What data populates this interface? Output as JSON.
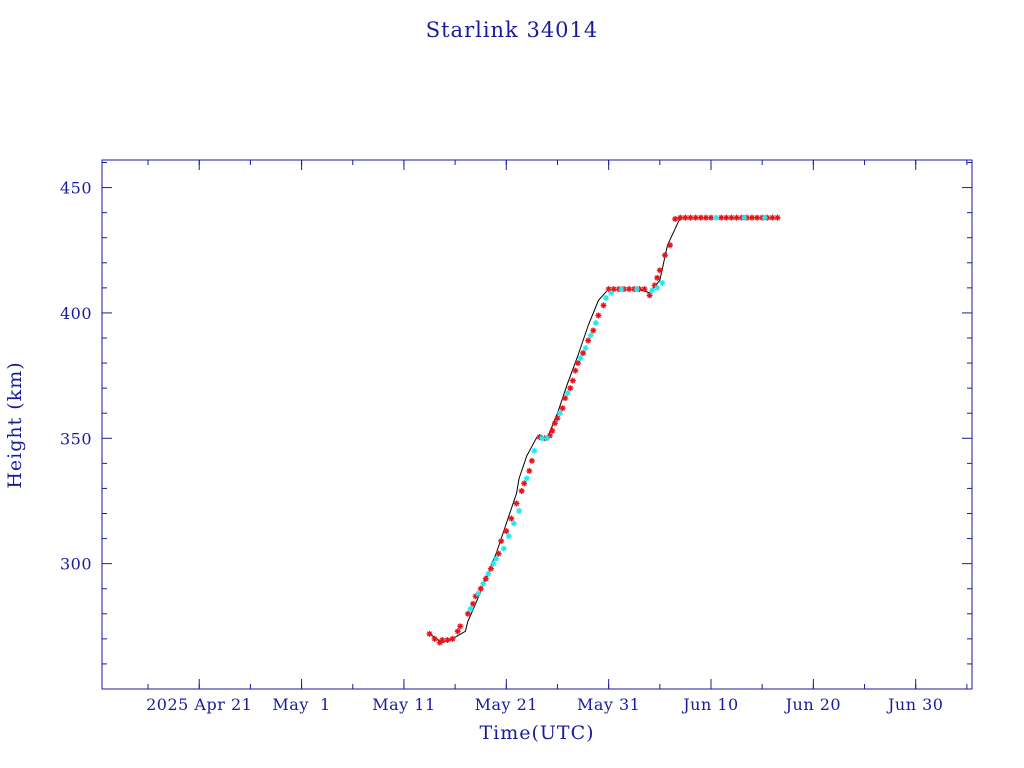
{
  "chart_data": {
    "type": "scatter",
    "title": "Starlink 34014",
    "xlabel": "Time(UTC)",
    "ylabel": "Height (km)",
    "x_unit": "date (UTC, 2025)",
    "xlim": [
      "2025-04-11T12:00",
      "2025-07-05T12:00"
    ],
    "ylim": [
      250,
      461
    ],
    "x_ticks": [
      {
        "value": "2025-04-21",
        "label": "2025 Apr 21"
      },
      {
        "value": "2025-05-01",
        "label": "May  1"
      },
      {
        "value": "2025-05-11",
        "label": "May 11"
      },
      {
        "value": "2025-05-21",
        "label": "May 21"
      },
      {
        "value": "2025-05-31",
        "label": "May 31"
      },
      {
        "value": "2025-06-10",
        "label": "Jun 10"
      },
      {
        "value": "2025-06-20",
        "label": "Jun 20"
      },
      {
        "value": "2025-06-30",
        "label": "Jun 30"
      }
    ],
    "y_ticks": [
      300,
      350,
      400,
      450
    ],
    "colors": {
      "axes": "#1a1a9c",
      "line": "#000000",
      "red_markers": "#e8141c",
      "cyan_markers": "#22e8f0"
    },
    "series": [
      {
        "color_key": "line",
        "style": "line",
        "x": [
          "2025-05-13T12:00",
          "2025-05-14T18:00",
          "2025-05-15T12:00",
          "2025-05-17T00:00",
          "2025-05-17T06:00",
          "2025-05-18T00:00",
          "2025-05-19T00:00",
          "2025-05-20T00:00",
          "2025-05-21T00:00",
          "2025-05-22T00:00",
          "2025-05-22T06:00",
          "2025-05-23T00:00",
          "2025-05-24T00:00",
          "2025-05-25T00:00",
          "2025-05-26T00:00",
          "2025-05-27T00:00",
          "2025-05-28T00:00",
          "2025-05-29T00:00",
          "2025-05-30T00:00",
          "2025-05-31T00:00",
          "2025-06-01T00:00",
          "2025-06-02T00:00",
          "2025-06-03T00:00",
          "2025-06-04T00:00",
          "2025-06-05T00:00",
          "2025-06-05T18:00",
          "2025-06-07T00:00",
          "2025-06-10T00:00",
          "2025-06-15T00:00",
          "2025-06-16T12:00"
        ],
        "y": [
          272,
          268.5,
          269.5,
          273,
          277,
          284,
          294,
          304,
          316,
          328,
          334,
          343,
          350.5,
          350,
          360,
          372,
          383,
          395,
          405,
          409.5,
          409.5,
          409.5,
          409.5,
          408,
          413,
          427,
          438,
          438,
          438,
          438
        ]
      },
      {
        "color_key": "red_markers",
        "style": "marker",
        "x": [
          "2025-05-13T12:00",
          "2025-05-14T00:00",
          "2025-05-14T12:00",
          "2025-05-14T18:00",
          "2025-05-15T06:00",
          "2025-05-15T18:00",
          "2025-05-16T06:00",
          "2025-05-16T12:00",
          "2025-05-17T06:00",
          "2025-05-17T18:00",
          "2025-05-18T00:00",
          "2025-05-18T12:00",
          "2025-05-19T00:00",
          "2025-05-19T12:00",
          "2025-05-20T06:00",
          "2025-05-20T12:00",
          "2025-05-21T00:00",
          "2025-05-21T12:00",
          "2025-05-22T00:00",
          "2025-05-22T12:00",
          "2025-05-22T18:00",
          "2025-05-23T06:00",
          "2025-05-23T12:00",
          "2025-05-24T06:00",
          "2025-05-24T18:00",
          "2025-05-25T06:00",
          "2025-05-25T12:00",
          "2025-05-25T18:00",
          "2025-05-26T00:00",
          "2025-05-26T12:00",
          "2025-05-26T18:00",
          "2025-05-27T06:00",
          "2025-05-27T12:00",
          "2025-05-27T18:00",
          "2025-05-28T00:00",
          "2025-05-28T12:00",
          "2025-05-29T00:00",
          "2025-05-29T12:00",
          "2025-05-30T00:00",
          "2025-05-30T12:00",
          "2025-05-31T00:00",
          "2025-05-31T12:00",
          "2025-06-01T00:00",
          "2025-06-01T12:00",
          "2025-06-02T00:00",
          "2025-06-02T12:00",
          "2025-06-03T00:00",
          "2025-06-03T12:00",
          "2025-06-04T00:00",
          "2025-06-04T12:00",
          "2025-06-04T18:00",
          "2025-06-05T00:00",
          "2025-06-05T12:00",
          "2025-06-06T00:00",
          "2025-06-06T12:00",
          "2025-06-07T00:00",
          "2025-06-07T12:00",
          "2025-06-08T00:00",
          "2025-06-08T12:00",
          "2025-06-09T00:00",
          "2025-06-09T12:00",
          "2025-06-10T00:00",
          "2025-06-11T00:00",
          "2025-06-11T12:00",
          "2025-06-12T00:00",
          "2025-06-12T12:00",
          "2025-06-13T00:00",
          "2025-06-13T12:00",
          "2025-06-14T00:00",
          "2025-06-14T12:00",
          "2025-06-15T00:00",
          "2025-06-15T12:00",
          "2025-06-16T00:00",
          "2025-06-16T12:00"
        ],
        "y": [
          272,
          270,
          268.5,
          269.5,
          269.5,
          270,
          273,
          275,
          280,
          284,
          287,
          290,
          294,
          298,
          304,
          309,
          313,
          318,
          324,
          329,
          332,
          337,
          341,
          350.5,
          350,
          351,
          353,
          356,
          358,
          362,
          366,
          370,
          373,
          377,
          380,
          384,
          389,
          393,
          399,
          403,
          409.5,
          409.5,
          409.5,
          409.5,
          409.5,
          409.5,
          409.5,
          409.5,
          407,
          411,
          414,
          417,
          423,
          427,
          437.5,
          438,
          438,
          438,
          438,
          438,
          438,
          438,
          438,
          438,
          438,
          438,
          438,
          438,
          438,
          438,
          438,
          438,
          438,
          438
        ]
      },
      {
        "color_key": "cyan_markers",
        "style": "marker",
        "x": [
          "2025-05-17T12:00",
          "2025-05-18T06:00",
          "2025-05-18T18:00",
          "2025-05-19T06:00",
          "2025-05-19T18:00",
          "2025-05-20T00:00",
          "2025-05-20T18:00",
          "2025-05-21T06:00",
          "2025-05-21T18:00",
          "2025-05-22T06:00",
          "2025-05-23T00:00",
          "2025-05-23T18:00",
          "2025-05-24T12:00",
          "2025-05-25T00:00",
          "2025-05-26T06:00",
          "2025-05-27T00:00",
          "2025-05-28T06:00",
          "2025-05-28T18:00",
          "2025-05-29T06:00",
          "2025-05-29T18:00",
          "2025-05-30T18:00",
          "2025-05-31T06:00",
          "2025-06-01T06:00",
          "2025-06-02T18:00",
          "2025-06-04T06:00",
          "2025-06-04T18:00",
          "2025-06-05T06:00",
          "2025-06-10T12:00",
          "2025-06-13T06:00",
          "2025-06-15T06:00"
        ],
        "y": [
          282,
          288,
          292,
          296,
          300,
          302,
          306,
          311,
          316,
          321,
          334,
          345,
          350,
          350,
          360,
          368,
          382,
          386,
          391,
          396,
          406,
          408,
          409.5,
          409.5,
          409,
          410,
          412,
          438,
          438,
          438
        ]
      }
    ]
  }
}
